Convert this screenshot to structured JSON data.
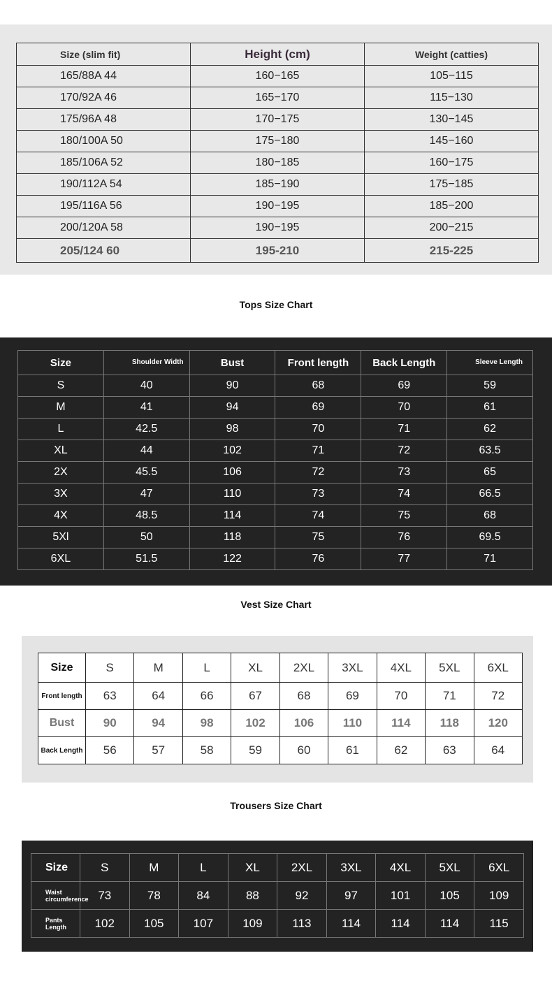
{
  "size_table": {
    "headers": [
      "Size (slim fit)",
      "Height (cm)",
      "Weight (catties)"
    ],
    "rows": [
      [
        "165/88A   44",
        "160−165",
        "105−115"
      ],
      [
        "170/92A   46",
        "165−170",
        "115−130"
      ],
      [
        "175/96A   48",
        "170−175",
        "130−145"
      ],
      [
        "180/100A  50",
        "175−180",
        "145−160"
      ],
      [
        "185/106A  52",
        "180−185",
        "160−175"
      ],
      [
        "190/112A  54",
        "185−190",
        "175−185"
      ],
      [
        "195/116A  56",
        "190−195",
        "185−200"
      ],
      [
        "200/120A  58",
        "190−195",
        "200−215"
      ],
      [
        "205/124 60",
        "195-210",
        "215-225"
      ]
    ]
  },
  "tops": {
    "title": "Tops Size Chart",
    "headers": [
      "Size",
      "Shoulder Width",
      "Bust",
      "Front length",
      "Back Length",
      "Sleeve Length"
    ],
    "rows": [
      [
        "S",
        "40",
        "90",
        "68",
        "69",
        "59"
      ],
      [
        "M",
        "41",
        "94",
        "69",
        "70",
        "61"
      ],
      [
        "L",
        "42.5",
        "98",
        "70",
        "71",
        "62"
      ],
      [
        "XL",
        "44",
        "102",
        "71",
        "72",
        "63.5"
      ],
      [
        "2X",
        "45.5",
        "106",
        "72",
        "73",
        "65"
      ],
      [
        "3X",
        "47",
        "110",
        "73",
        "74",
        "66.5"
      ],
      [
        "4X",
        "48.5",
        "114",
        "74",
        "75",
        "68"
      ],
      [
        "5Xl",
        "50",
        "118",
        "75",
        "76",
        "69.5"
      ],
      [
        "6XL",
        "51.5",
        "122",
        "76",
        "77",
        "71"
      ]
    ]
  },
  "vest": {
    "title": "Vest Size Chart",
    "rows": [
      [
        "Size",
        "S",
        "M",
        "L",
        "XL",
        "2XL",
        "3XL",
        "4XL",
        "5XL",
        "6XL"
      ],
      [
        "Front length",
        "63",
        "64",
        "66",
        "67",
        "68",
        "69",
        "70",
        "71",
        "72"
      ],
      [
        "Bust",
        "90",
        "94",
        "98",
        "102",
        "106",
        "110",
        "114",
        "118",
        "120"
      ],
      [
        "Back Length",
        "56",
        "57",
        "58",
        "59",
        "60",
        "61",
        "62",
        "63",
        "64"
      ]
    ]
  },
  "trousers": {
    "title": "Trousers Size Chart",
    "rows": [
      [
        "Size",
        "S",
        "M",
        "L",
        "XL",
        "2XL",
        "3XL",
        "4XL",
        "5XL",
        "6XL"
      ],
      [
        "Waist circumference",
        "73",
        "78",
        "84",
        "88",
        "92",
        "97",
        "101",
        "105",
        "109"
      ],
      [
        "Pants Length",
        "102",
        "105",
        "107",
        "109",
        "113",
        "114",
        "114",
        "114",
        "115"
      ]
    ]
  }
}
